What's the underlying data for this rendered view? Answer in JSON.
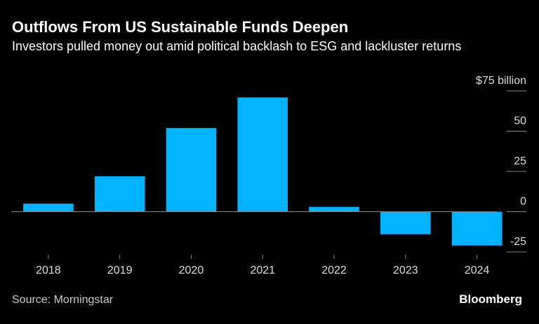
{
  "chart_data": {
    "type": "bar",
    "title": "Outflows From US Sustainable Funds Deepen",
    "subtitle": "Investors pulled money out amid political backlash to ESG and lackluster returns",
    "categories": [
      "2018",
      "2019",
      "2020",
      "2021",
      "2022",
      "2023",
      "2024"
    ],
    "values": [
      5,
      22,
      52,
      71,
      3,
      -14,
      -21
    ],
    "color": "#00b2ff",
    "ylim": [
      -25,
      75
    ],
    "yticks": [
      {
        "value": 75,
        "label": "$75 billion"
      },
      50,
      25,
      0,
      -25
    ],
    "source": "Source: Morningstar",
    "brand": "Bloomberg"
  }
}
